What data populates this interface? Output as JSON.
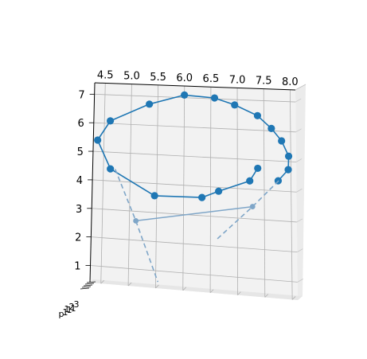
{
  "chart_data": {
    "type": "line",
    "projection": "3d",
    "title": "",
    "x_tick_labels": [
      "4.5",
      "5.0",
      "5.5",
      "6.0",
      "6.5",
      "7.0",
      "7.5",
      "8.0"
    ],
    "y_tick_labels": [
      "1",
      "2",
      "3",
      "4",
      "5",
      "6",
      "7"
    ],
    "depth_tick_labels": [
      "3",
      "2",
      "1"
    ],
    "depth_axis_fragments": [
      "p",
      "1",
      "1",
      "1"
    ],
    "xlim": [
      4.3,
      8.1
    ],
    "ylim": [
      0.4,
      7.4
    ],
    "grid": true,
    "series": [
      {
        "style": "solid-markers",
        "color": "#1f77b4",
        "points": [
          {
            "x": 7.38,
            "y": 4.72
          },
          {
            "x": 7.23,
            "y": 4.28
          },
          {
            "x": 6.65,
            "y": 3.87
          },
          {
            "x": 6.34,
            "y": 3.62
          },
          {
            "x": 5.46,
            "y": 3.58
          },
          {
            "x": 4.63,
            "y": 4.42
          },
          {
            "x": 4.38,
            "y": 5.4
          },
          {
            "x": 4.61,
            "y": 6.09
          },
          {
            "x": 5.34,
            "y": 6.73
          },
          {
            "x": 6.0,
            "y": 7.09
          },
          {
            "x": 6.57,
            "y": 7.03
          },
          {
            "x": 6.95,
            "y": 6.82
          },
          {
            "x": 7.38,
            "y": 6.49
          },
          {
            "x": 7.64,
            "y": 6.08
          },
          {
            "x": 7.83,
            "y": 5.68
          },
          {
            "x": 7.96,
            "y": 5.18
          },
          {
            "x": 7.95,
            "y": 4.73
          },
          {
            "x": 7.76,
            "y": 4.34
          }
        ]
      },
      {
        "style": "dashed-projection",
        "color": "#7fa6c8",
        "points": [
          {
            "x": 4.72,
            "y": 4.42
          },
          {
            "x": 5.12,
            "y": 2.67
          },
          {
            "x": 5.54,
            "y": 0.62
          }
        ]
      },
      {
        "style": "dashed-projection",
        "color": "#7fa6c8",
        "points": [
          {
            "x": 7.77,
            "y": 4.34
          },
          {
            "x": 7.28,
            "y": 3.42
          },
          {
            "x": 6.59,
            "y": 2.18
          }
        ]
      },
      {
        "style": "solid-projection",
        "color": "#7fa6c8",
        "points": [
          {
            "x": 5.12,
            "y": 2.67
          },
          {
            "x": 7.28,
            "y": 3.42
          }
        ]
      }
    ]
  }
}
